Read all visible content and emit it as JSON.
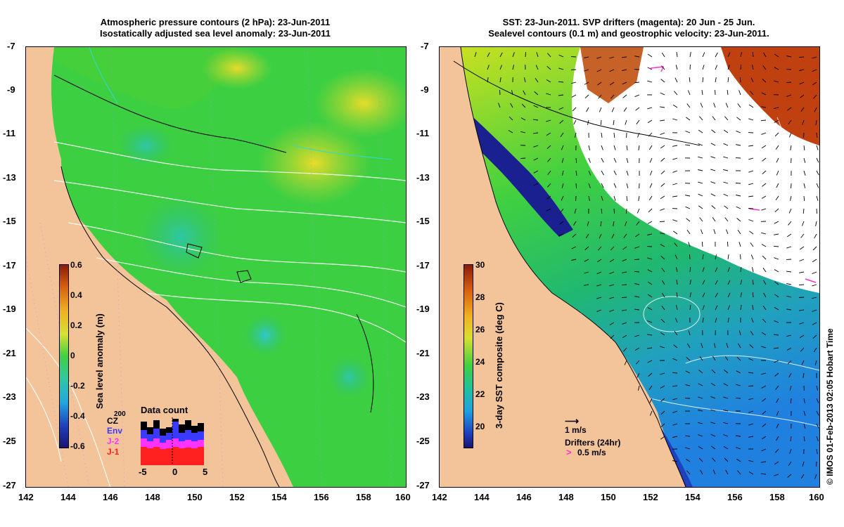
{
  "left_panel": {
    "title_line1": "Atmospheric pressure contours (2 hPa): 23-Jun-2011",
    "title_line2": "Isostatically adjusted sea level anomaly: 23-Jun-2011",
    "x_ticks": [
      "142",
      "144",
      "146",
      "148",
      "150",
      "152",
      "154",
      "156",
      "158",
      "160"
    ],
    "y_ticks": [
      "-7",
      "-9",
      "-11",
      "-13",
      "-15",
      "-17",
      "-19",
      "-21",
      "-23",
      "-25",
      "-27"
    ],
    "colorbar": {
      "label": "Sea level anomaly (m)",
      "ticks": [
        "0.6",
        "0.4",
        "0.2",
        "0",
        "-0.2",
        "-0.4",
        "-0.6"
      ]
    },
    "data_count": {
      "title": "Data count",
      "series": [
        "CZ",
        "Env",
        "J-2",
        "J-1"
      ],
      "series_colors": [
        "#000000",
        "#3a3aff",
        "#ff33ff",
        "#ff2020"
      ],
      "top_value": "200",
      "x_ticks": [
        "-5",
        "0",
        "5"
      ]
    }
  },
  "right_panel": {
    "title_line1": "SST: 23-Jun-2011. SVP drifters (magenta): 20 Jun - 25 Jun.",
    "title_line2": "Sealevel contours (0.1 m) and geostrophic velocity: 23-Jun-2011.",
    "x_ticks": [
      "142",
      "144",
      "146",
      "148",
      "150",
      "152",
      "154",
      "156",
      "158",
      "160"
    ],
    "y_ticks": [
      "-7",
      "-9",
      "-11",
      "-13",
      "-15",
      "-17",
      "-19",
      "-21",
      "-23",
      "-25",
      "-27"
    ],
    "colorbar": {
      "label": "3-day SST composite (deg C)",
      "ticks": [
        "30",
        "28",
        "26",
        "24",
        "22",
        "20"
      ]
    },
    "velocity_legend": "1 m/s",
    "drifters_label": "Drifters (24hr)",
    "drifters_speed": "0.5 m/s"
  },
  "credit": "© IMOS 01-Feb-2013 02:05 Hobart Time",
  "colors": {
    "land": "#f3c49a",
    "ocean_green": "#3cc83c",
    "cloud": "#ffffff",
    "drifter": "#ff33cc"
  }
}
